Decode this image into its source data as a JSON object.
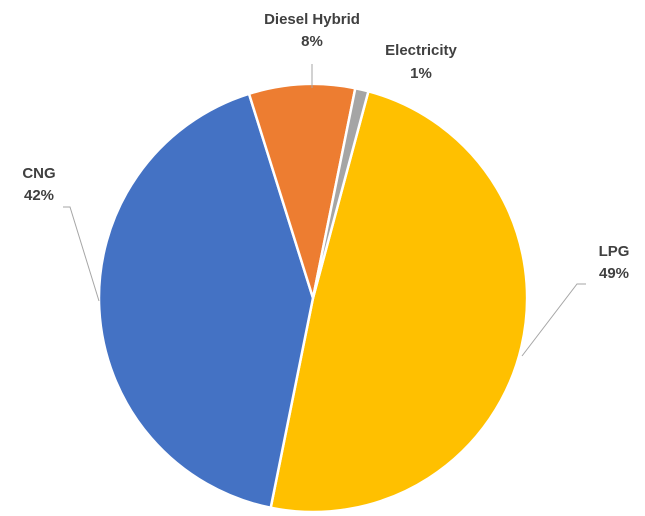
{
  "chart_data": {
    "type": "pie",
    "categories": [
      "LPG",
      "CNG",
      "Diesel Hybrid",
      "Electricity"
    ],
    "values": [
      49,
      42,
      8,
      1
    ],
    "labels": [
      "LPG",
      "CNG",
      "Diesel Hybrid",
      "Electricity"
    ],
    "percent_labels": [
      "49%",
      "42%",
      "8%",
      "1%"
    ],
    "colors": [
      "#ffc000",
      "#4472c4",
      "#ed7d31",
      "#a5a5a5"
    ],
    "title": "",
    "legend": "none",
    "start_angle_deg": 15,
    "direction": "clockwise"
  }
}
